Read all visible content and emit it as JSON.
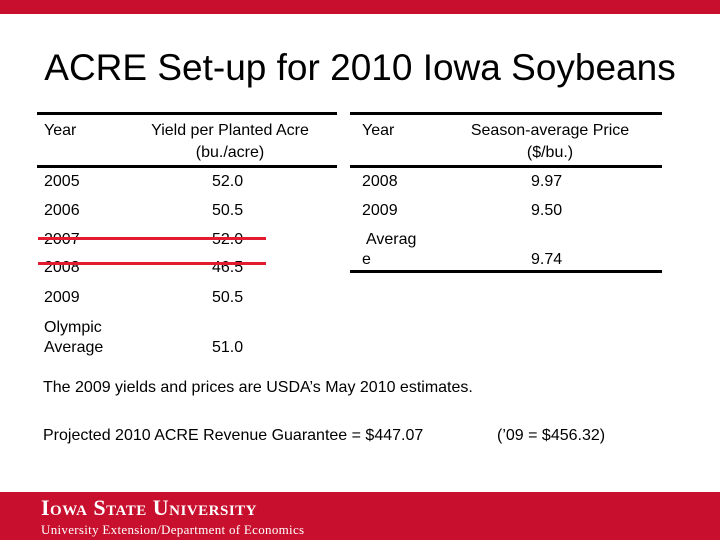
{
  "slide": {
    "title": "ACRE Set-up for 2010 Iowa Soybeans"
  },
  "yield_table": {
    "col_year": "Year",
    "col_yield_line1": "Yield per Planted Acre",
    "col_yield_line2": "(bu./acre)",
    "rows": [
      {
        "year": "2005",
        "value": "52.0",
        "struck": false
      },
      {
        "year": "2006",
        "value": "50.5",
        "struck": false
      },
      {
        "year": "2007",
        "value": "52.0",
        "struck": true
      },
      {
        "year": "2008",
        "value": "46.5",
        "struck": true
      },
      {
        "year": "2009",
        "value": "50.5",
        "struck": false
      }
    ],
    "olympic_line1": "Olympic",
    "olympic_line2": "Average",
    "olympic_value": "51.0"
  },
  "price_table": {
    "col_year": "Year",
    "col_price_line1": "Season-average Price",
    "col_price_line2": "($/bu.)",
    "rows": [
      {
        "year": "2008",
        "value": "9.97"
      },
      {
        "year": "2009",
        "value": "9.50"
      }
    ],
    "average_line1": "Averag",
    "average_line2": "e",
    "average_value": "9.74"
  },
  "notes": {
    "estimates": "The 2009 yields and prices are USDA’s May 2010 estimates.",
    "guarantee": "Projected 2010 ACRE Revenue Guarantee = $447.07",
    "previous": "(’09 = $456.32)"
  },
  "footer": {
    "university": "Iowa State University",
    "department": "University Extension/Department of Economics"
  },
  "colors": {
    "brand_red": "#c8102e",
    "strike_red": "#e21b2e"
  }
}
